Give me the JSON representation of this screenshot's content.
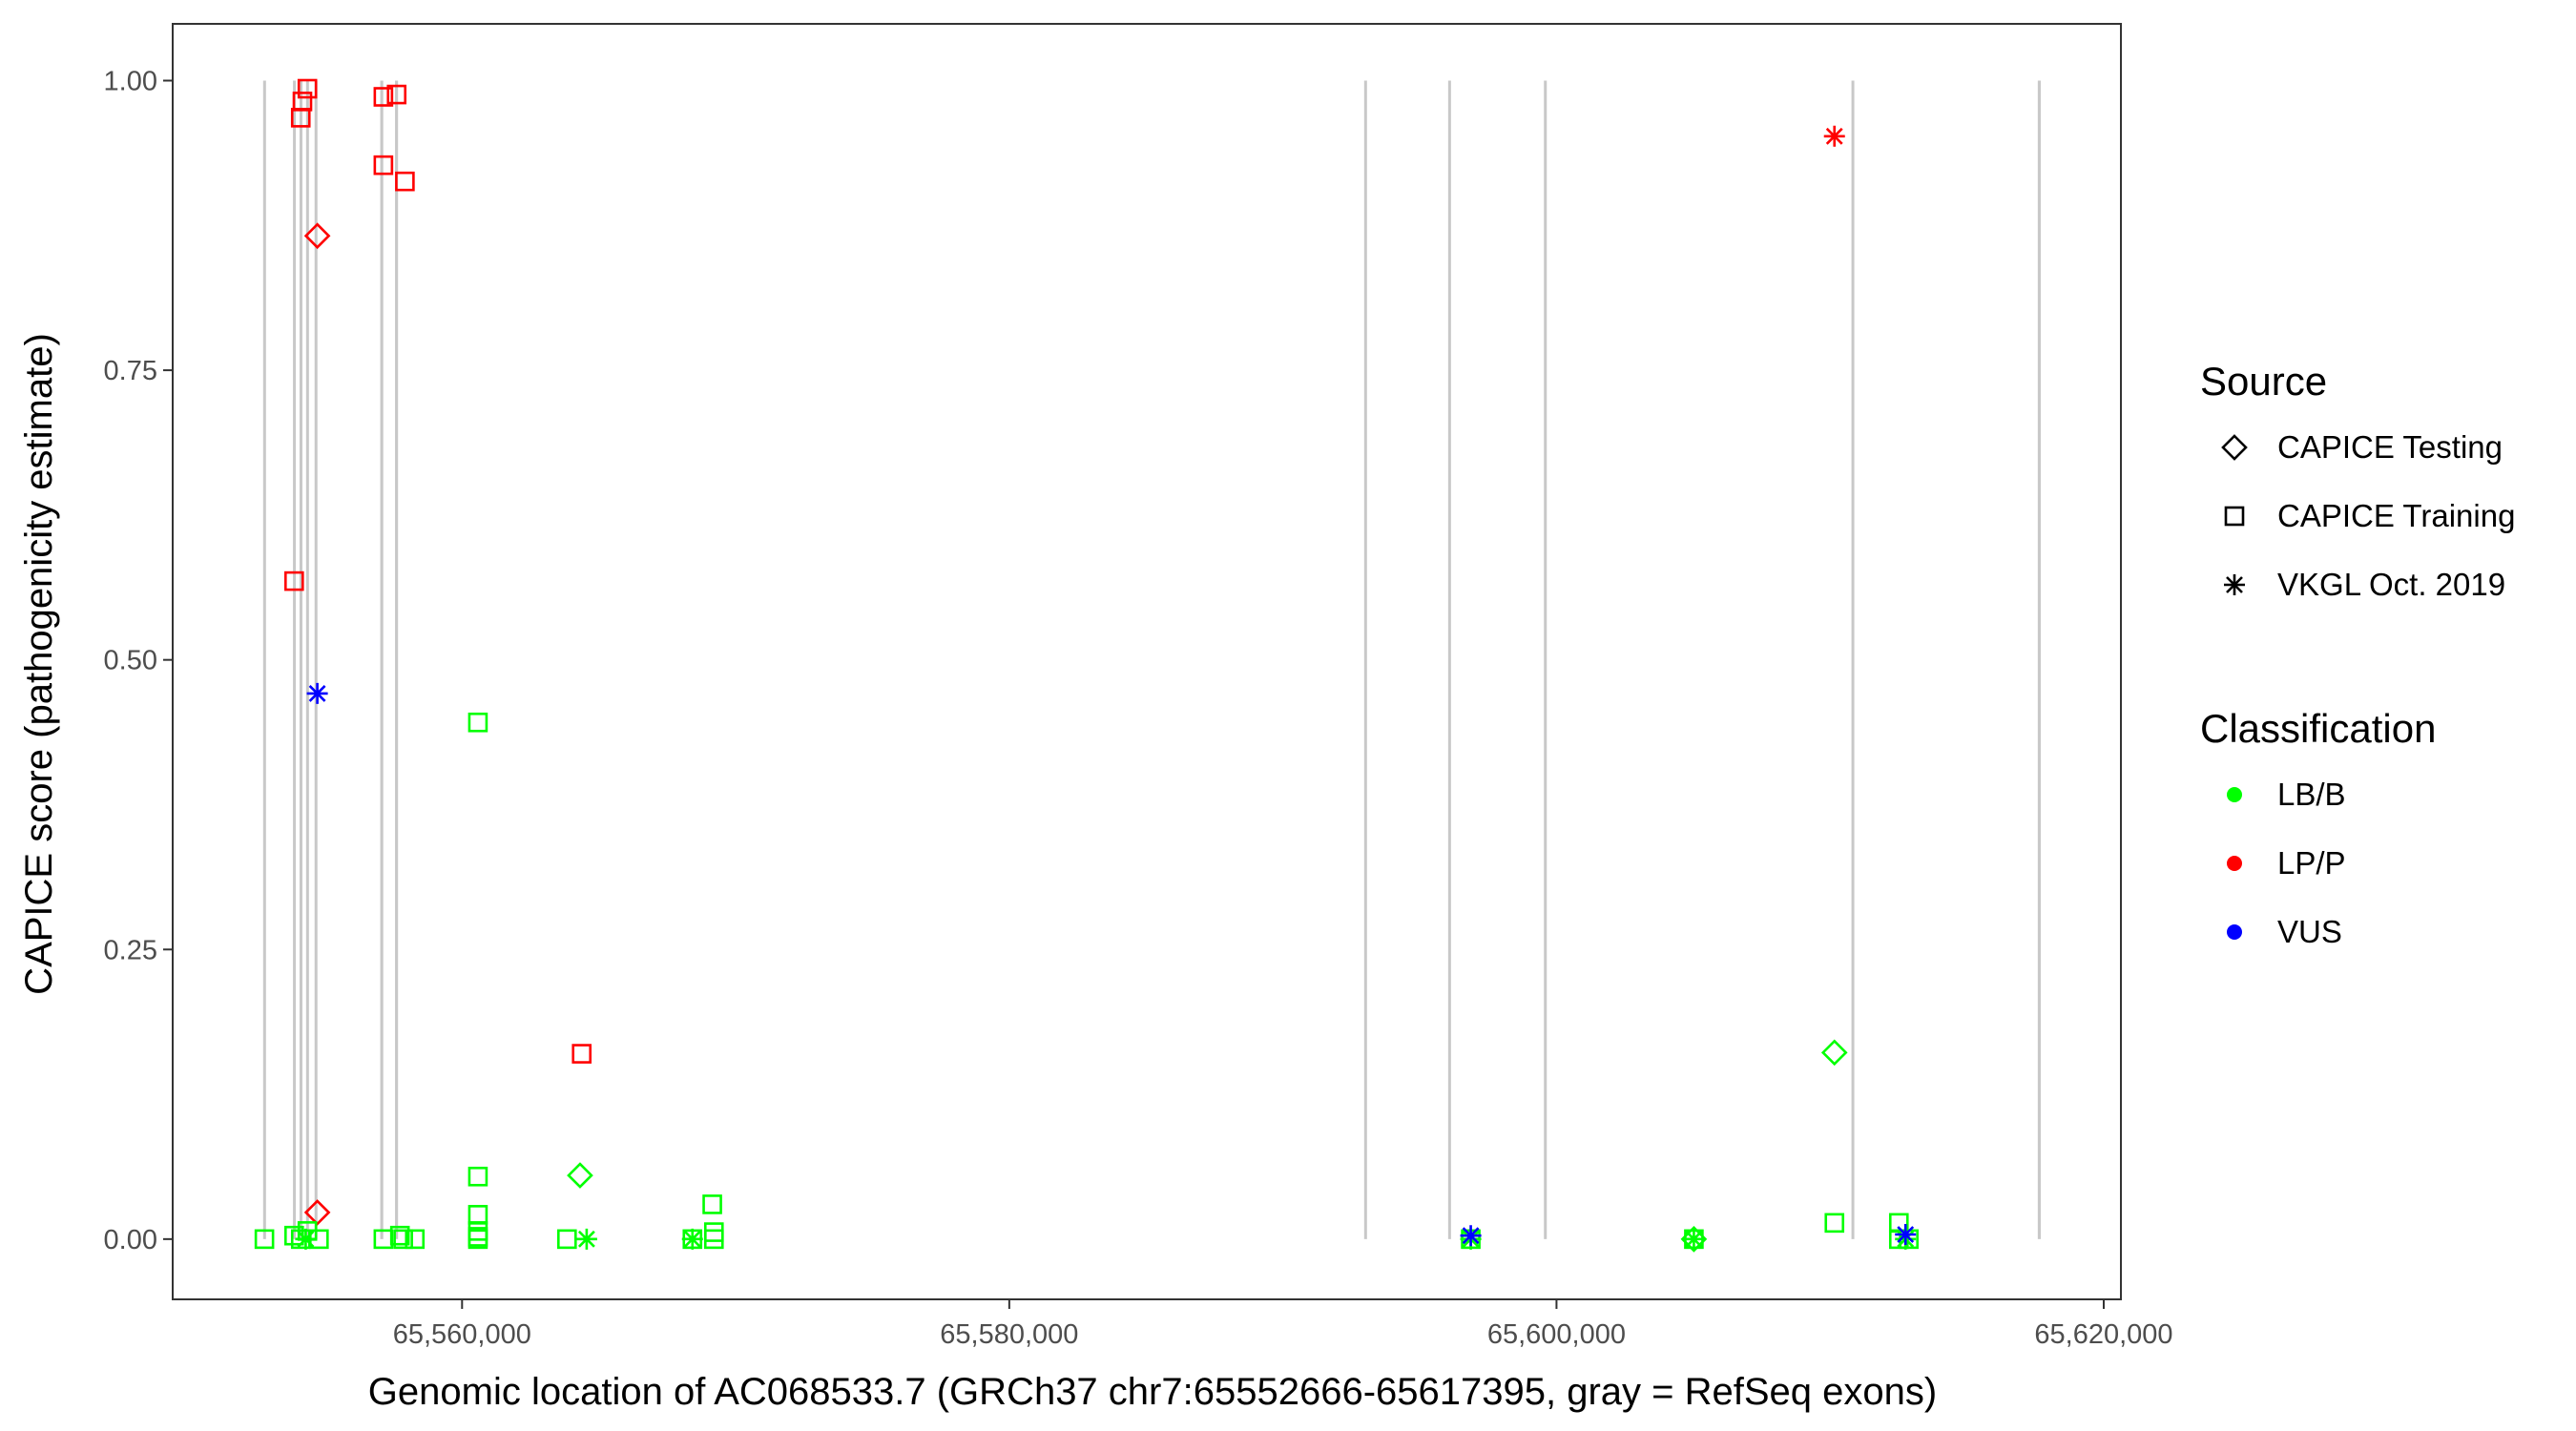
{
  "chart_data": {
    "type": "scatter",
    "xlabel": "Genomic location of AC068533.7 (GRCh37 chr7:65552666-65617395, gray = RefSeq exons)",
    "ylabel": "CAPICE score (pathogenicity estimate)",
    "xlim": [
      65549424,
      65620628
    ],
    "ylim": [
      -0.052,
      1.049
    ],
    "x_ticks": [
      65560000,
      65580000,
      65600000,
      65620000
    ],
    "x_tick_labels": [
      "65,560,000",
      "65,580,000",
      "65,600,000",
      "65,620,000"
    ],
    "y_ticks": [
      0,
      0.25,
      0.5,
      0.75,
      1.0
    ],
    "y_tick_labels": [
      "0.00",
      "0.25",
      "0.50",
      "0.75",
      "1.00"
    ],
    "grid": false,
    "legend_placement": "right",
    "exon_color": "#c8c8c8",
    "exons": [
      {
        "start": 65552730,
        "end": 65552820
      },
      {
        "start": 65553820,
        "end": 65553900
      },
      {
        "start": 65554060,
        "end": 65554150
      },
      {
        "start": 65554300,
        "end": 65554390
      },
      {
        "start": 65554610,
        "end": 65554690
      },
      {
        "start": 65557010,
        "end": 65557120
      },
      {
        "start": 65557550,
        "end": 65557660
      },
      {
        "start": 65592970,
        "end": 65593040
      },
      {
        "start": 65596040,
        "end": 65596130
      },
      {
        "start": 65599540,
        "end": 65599630
      },
      {
        "start": 65610780,
        "end": 65610860
      },
      {
        "start": 65617590,
        "end": 65617700
      }
    ],
    "legend": {
      "source_title": "Source",
      "sources": [
        {
          "name": "CAPICE Testing",
          "shape": "diamond"
        },
        {
          "name": "CAPICE Training",
          "shape": "square"
        },
        {
          "name": "VKGL Oct. 2019",
          "shape": "asterisk"
        }
      ],
      "classification_title": "Classification",
      "classes": [
        {
          "name": "LB/B",
          "color": "#00ff00"
        },
        {
          "name": "LP/P",
          "color": "#ff0000"
        },
        {
          "name": "VUS",
          "color": "#0000ff"
        }
      ]
    },
    "points": [
      {
        "x": 65554347,
        "y": 0.993,
        "source": "CAPICE Training",
        "class": "LP/P"
      },
      {
        "x": 65554166,
        "y": 0.982,
        "source": "CAPICE Training",
        "class": "LP/P"
      },
      {
        "x": 65554105,
        "y": 0.968,
        "source": "CAPICE Training",
        "class": "LP/P"
      },
      {
        "x": 65557125,
        "y": 0.986,
        "source": "CAPICE Training",
        "class": "LP/P"
      },
      {
        "x": 65557609,
        "y": 0.988,
        "source": "CAPICE Training",
        "class": "LP/P"
      },
      {
        "x": 65557125,
        "y": 0.927,
        "source": "CAPICE Training",
        "class": "LP/P"
      },
      {
        "x": 65557911,
        "y": 0.913,
        "source": "CAPICE Training",
        "class": "LP/P"
      },
      {
        "x": 65553863,
        "y": 0.568,
        "source": "CAPICE Training",
        "class": "LP/P"
      },
      {
        "x": 65564373,
        "y": 0.16,
        "source": "CAPICE Training",
        "class": "LP/P"
      },
      {
        "x": 65554710,
        "y": 0.866,
        "source": "CAPICE Testing",
        "class": "LP/P"
      },
      {
        "x": 65554710,
        "y": 0.023,
        "source": "CAPICE Testing",
        "class": "LP/P"
      },
      {
        "x": 65610158,
        "y": 0.952,
        "source": "VKGL Oct. 2019",
        "class": "LP/P"
      },
      {
        "x": 65552776,
        "y": 0.0,
        "source": "CAPICE Training",
        "class": "LB/B"
      },
      {
        "x": 65553863,
        "y": 0.003,
        "source": "CAPICE Training",
        "class": "LB/B"
      },
      {
        "x": 65554347,
        "y": 0.007,
        "source": "CAPICE Training",
        "class": "LB/B"
      },
      {
        "x": 65554105,
        "y": 0.0,
        "source": "CAPICE Training",
        "class": "LB/B"
      },
      {
        "x": 65554770,
        "y": 0.0,
        "source": "CAPICE Training",
        "class": "LB/B"
      },
      {
        "x": 65557125,
        "y": 0.0,
        "source": "CAPICE Training",
        "class": "LB/B"
      },
      {
        "x": 65557729,
        "y": 0.003,
        "source": "CAPICE Training",
        "class": "LB/B"
      },
      {
        "x": 65557850,
        "y": 0.0,
        "source": "CAPICE Training",
        "class": "LB/B"
      },
      {
        "x": 65558273,
        "y": 0.0,
        "source": "CAPICE Training",
        "class": "LB/B"
      },
      {
        "x": 65560580,
        "y": 0.446,
        "source": "CAPICE Training",
        "class": "LB/B"
      },
      {
        "x": 65560580,
        "y": 0.054,
        "source": "CAPICE Training",
        "class": "LB/B"
      },
      {
        "x": 65560580,
        "y": 0.021,
        "source": "CAPICE Training",
        "class": "LB/B"
      },
      {
        "x": 65560580,
        "y": 0.007,
        "source": "CAPICE Training",
        "class": "LB/B"
      },
      {
        "x": 65560580,
        "y": 0.002,
        "source": "CAPICE Training",
        "class": "LB/B"
      },
      {
        "x": 65560580,
        "y": 0.0,
        "source": "CAPICE Training",
        "class": "LB/B"
      },
      {
        "x": 65563836,
        "y": 0.0,
        "source": "CAPICE Training",
        "class": "LB/B"
      },
      {
        "x": 65568420,
        "y": 0.0,
        "source": "CAPICE Training",
        "class": "LB/B"
      },
      {
        "x": 65569145,
        "y": 0.03,
        "source": "CAPICE Training",
        "class": "LB/B"
      },
      {
        "x": 65569205,
        "y": 0.006,
        "source": "CAPICE Training",
        "class": "LB/B"
      },
      {
        "x": 65569205,
        "y": 0.0,
        "source": "CAPICE Training",
        "class": "LB/B"
      },
      {
        "x": 65596867,
        "y": 0.0,
        "source": "CAPICE Training",
        "class": "LB/B"
      },
      {
        "x": 65605021,
        "y": 0.0,
        "source": "CAPICE Training",
        "class": "LB/B"
      },
      {
        "x": 65610158,
        "y": 0.014,
        "source": "CAPICE Training",
        "class": "LB/B"
      },
      {
        "x": 65612513,
        "y": 0.014,
        "source": "CAPICE Training",
        "class": "LB/B"
      },
      {
        "x": 65612513,
        "y": 0.0,
        "source": "CAPICE Training",
        "class": "LB/B"
      },
      {
        "x": 65612876,
        "y": 0.0,
        "source": "CAPICE Training",
        "class": "LB/B"
      },
      {
        "x": 65564312,
        "y": 0.055,
        "source": "CAPICE Testing",
        "class": "LB/B"
      },
      {
        "x": 65610158,
        "y": 0.161,
        "source": "CAPICE Testing",
        "class": "LB/B"
      },
      {
        "x": 65605021,
        "y": 0.0,
        "source": "CAPICE Testing",
        "class": "LB/B"
      },
      {
        "x": 65554286,
        "y": 0.0,
        "source": "VKGL Oct. 2019",
        "class": "LB/B"
      },
      {
        "x": 65564554,
        "y": 0.0,
        "source": "VKGL Oct. 2019",
        "class": "LB/B"
      },
      {
        "x": 65568420,
        "y": 0.0,
        "source": "VKGL Oct. 2019",
        "class": "LB/B"
      },
      {
        "x": 65605021,
        "y": 0.0,
        "source": "VKGL Oct. 2019",
        "class": "LB/B"
      },
      {
        "x": 65596867,
        "y": 0.0,
        "source": "VKGL Oct. 2019",
        "class": "LB/B"
      },
      {
        "x": 65612755,
        "y": 0.0,
        "source": "VKGL Oct. 2019",
        "class": "LB/B"
      },
      {
        "x": 65554710,
        "y": 0.471,
        "source": "VKGL Oct. 2019",
        "class": "VUS"
      },
      {
        "x": 65596867,
        "y": 0.003,
        "source": "VKGL Oct. 2019",
        "class": "VUS"
      },
      {
        "x": 65612755,
        "y": 0.004,
        "source": "VKGL Oct. 2019",
        "class": "VUS"
      }
    ]
  }
}
